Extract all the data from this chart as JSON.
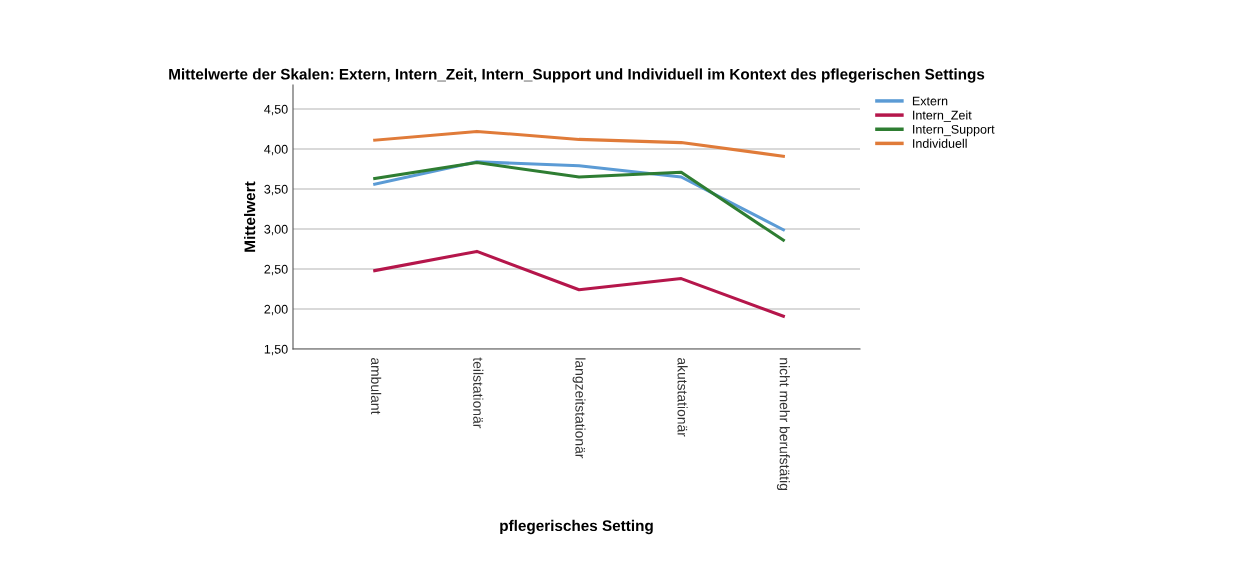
{
  "chart_data": {
    "type": "line",
    "title": "Mittelwerte der Skalen: Extern, Intern_Zeit, Intern_Support und Individuell im Kontext des pflegerischen Settings",
    "xlabel": "pflegerisches Setting",
    "ylabel": "Mittelwert",
    "categories": [
      "ambulant",
      "teilstationär",
      "langzeitstationär",
      "akutstationär",
      "nicht mehr berufstätig"
    ],
    "series": [
      {
        "name": "Extern",
        "color": "#5b9bd5",
        "values": [
          3.56,
          3.84,
          3.79,
          3.65,
          2.99
        ]
      },
      {
        "name": "Intern_Zeit",
        "color": "#b5164b",
        "values": [
          2.48,
          2.72,
          2.24,
          2.38,
          1.91
        ]
      },
      {
        "name": "Intern_Support",
        "color": "#2e7d32",
        "values": [
          3.63,
          3.83,
          3.65,
          3.71,
          2.86
        ]
      },
      {
        "name": "Individuell",
        "color": "#e07b39",
        "values": [
          4.11,
          4.22,
          4.12,
          4.08,
          3.91
        ]
      }
    ],
    "ylim": [
      1.5,
      4.8
    ],
    "yticks": [
      {
        "value": 1.5,
        "label": "1,50"
      },
      {
        "value": 2.0,
        "label": "2,00"
      },
      {
        "value": 2.5,
        "label": "2,50"
      },
      {
        "value": 3.0,
        "label": "3,00"
      },
      {
        "value": 3.5,
        "label": "3,50"
      },
      {
        "value": 4.0,
        "label": "4,00"
      },
      {
        "value": 4.5,
        "label": "4,50"
      }
    ],
    "grid": "y",
    "legend": "top right",
    "marker": "none",
    "line_style": "solid"
  }
}
